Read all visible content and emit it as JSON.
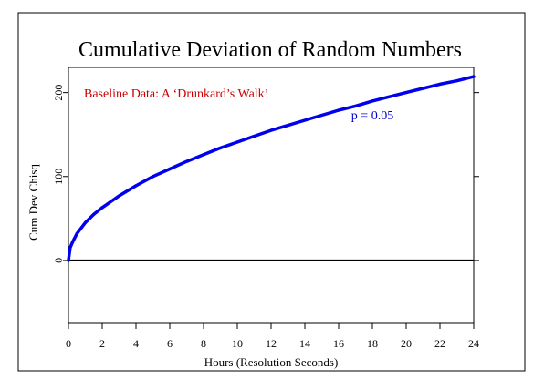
{
  "chart_data": {
    "type": "line",
    "title": "Cumulative Deviation of Random Numbers",
    "xlabel": "Hours (Resolution Seconds)",
    "ylabel": "Cum Dev Chisq",
    "xlim": [
      0,
      24
    ],
    "ylim": [
      -75,
      230
    ],
    "x_ticks": [
      0,
      2,
      4,
      6,
      8,
      10,
      12,
      14,
      16,
      18,
      20,
      22,
      24
    ],
    "y_ticks": [
      0,
      100,
      200
    ],
    "grid": false,
    "annotations": [
      {
        "text": "Baseline Data: A ‘Drunkard’s Walk’",
        "color": "#cc0000"
      },
      {
        "text": "p = 0.05",
        "color": "#0000cc",
        "x": 18,
        "y": 168
      }
    ],
    "reference_line": {
      "y": 0,
      "color": "#000000"
    },
    "series": [
      {
        "color": "#0000ee",
        "x": [
          0,
          0.1,
          0.25,
          0.5,
          1,
          1.5,
          2,
          3,
          4,
          5,
          6,
          7,
          8,
          9,
          10,
          11,
          12,
          13,
          14,
          15,
          16,
          17,
          18,
          19,
          20,
          21,
          22,
          23,
          24
        ],
        "y": [
          0,
          15,
          22,
          32,
          45,
          55,
          63,
          77,
          89,
          100,
          109,
          118,
          126,
          134,
          141,
          148,
          155,
          161,
          167,
          173,
          179,
          184,
          190,
          195,
          200,
          205,
          210,
          214,
          219
        ]
      }
    ]
  }
}
